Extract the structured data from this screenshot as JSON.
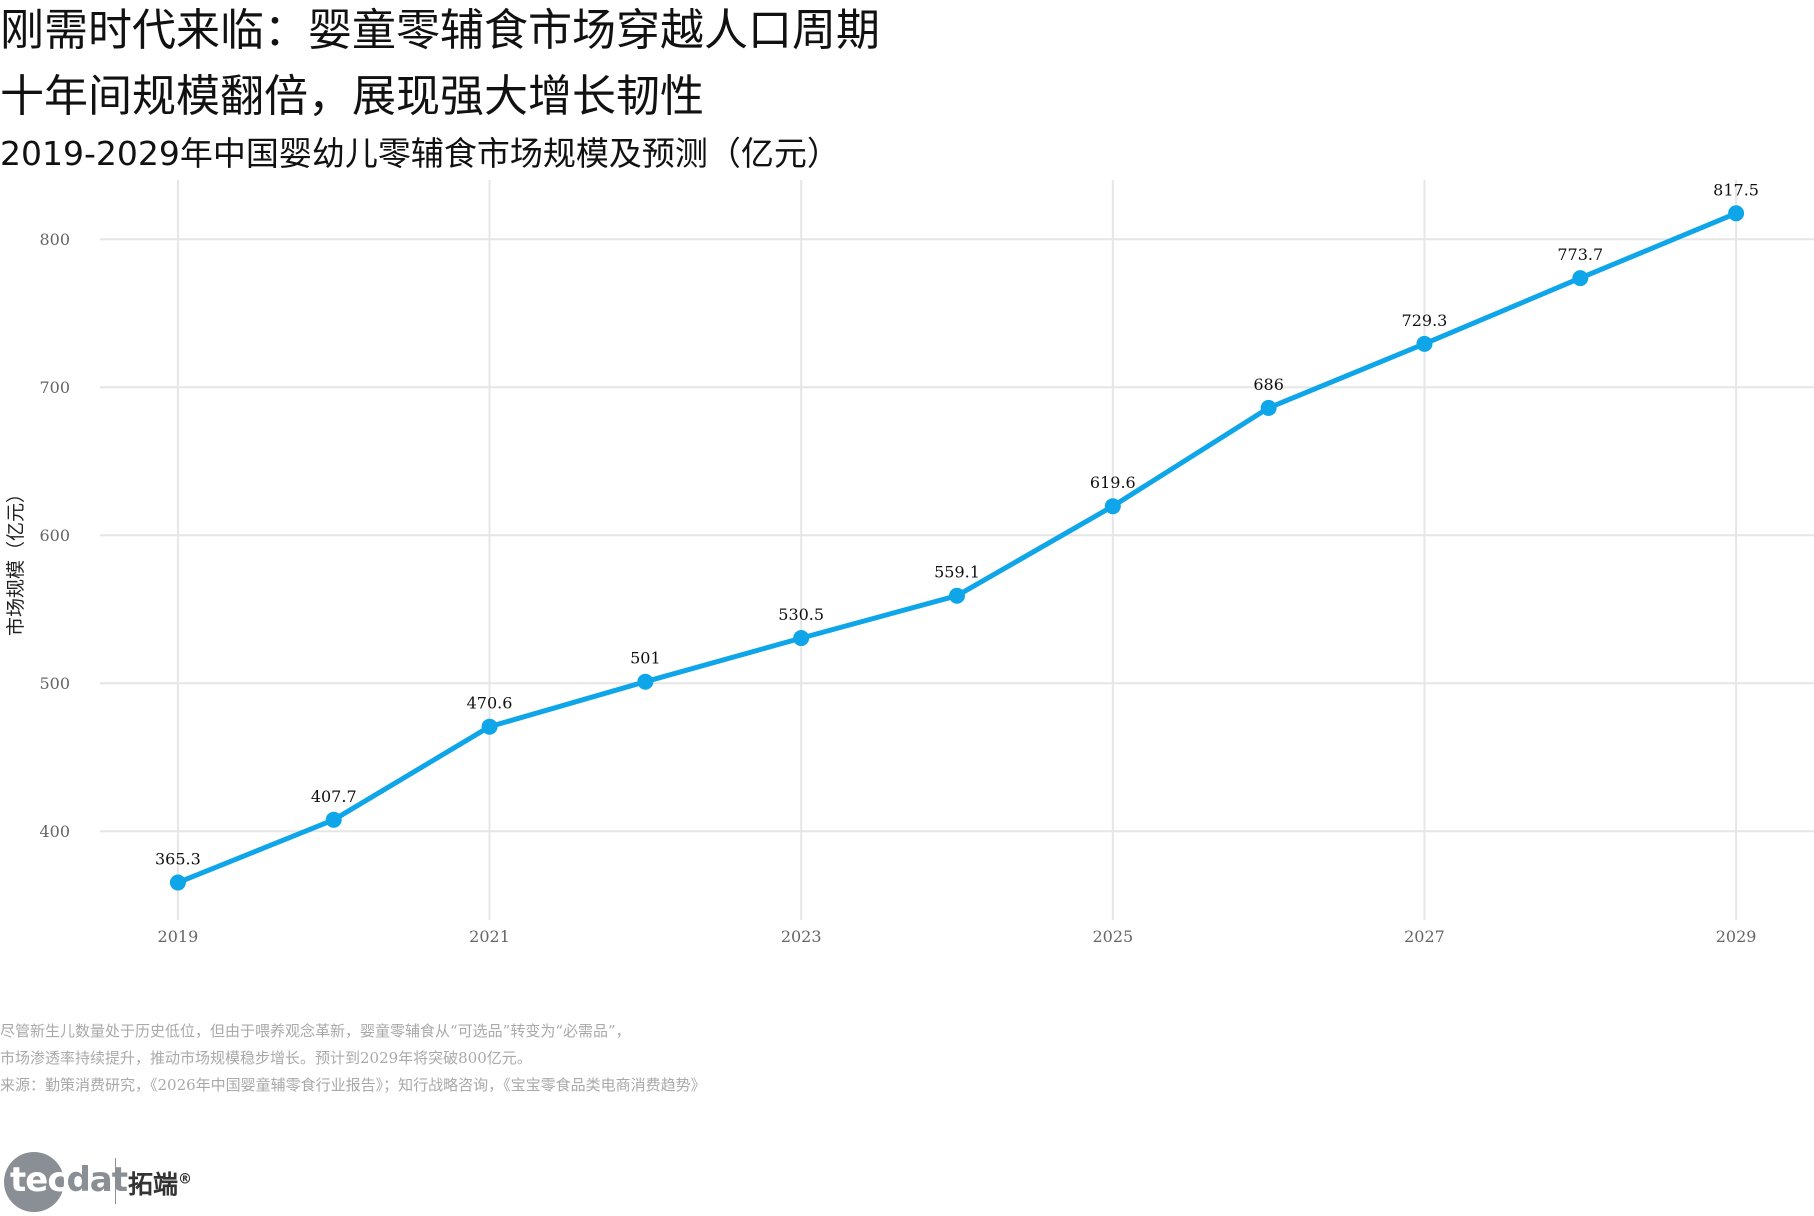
{
  "title_line1": "刚需时代来临：婴童零辅食市场穿越人口周期",
  "title_line2": "十年间规模翻倍，展现强大增长韧性",
  "subtitle": "2019-2029年中国婴幼儿零辅食市场规模及预测（亿元）",
  "chart_data": {
    "type": "line",
    "x": [
      2019,
      2020,
      2021,
      2022,
      2023,
      2024,
      2025,
      2026,
      2027,
      2028,
      2029
    ],
    "values": [
      365.3,
      407.7,
      470.6,
      501,
      530.5,
      559.1,
      619.6,
      686,
      729.3,
      773.7,
      817.5
    ],
    "value_labels": [
      "365.3",
      "407.7",
      "470.6",
      "501",
      "530.5",
      "559.1",
      "619.6",
      "686",
      "729.3",
      "773.7",
      "817.5"
    ],
    "x_ticks": [
      2019,
      2021,
      2023,
      2025,
      2027,
      2029
    ],
    "x_tick_labels": [
      "2019",
      "2021",
      "2023",
      "2025",
      "2027",
      "2029"
    ],
    "y_ticks": [
      400,
      500,
      600,
      700,
      800
    ],
    "y_tick_labels": [
      "400",
      "500",
      "600",
      "700",
      "800"
    ],
    "ylabel": "市场规模（亿元）",
    "xlabel": "",
    "xlim": [
      2018.5,
      2029.5
    ],
    "ylim": [
      340,
      840
    ],
    "grid": true,
    "line_color": "#0ea5e9",
    "grid_color": "#e6e6e6"
  },
  "notes": [
    "尽管新生儿数量处于历史低位，但由于喂养观念革新，婴童零辅食从“可选品”转变为“必需品”，",
    "市场渗透率持续提升，推动市场规模稳步增长。预计到2029年将突破800亿元。",
    "来源：勤策消费研究，《2026年中国婴童辅零食行业报告》；知行战略咨询，《宝宝零食品类电商消费趋势》"
  ],
  "logo": {
    "text_part1": "tec",
    "text_part2": "dat",
    "cn": "拓端",
    "reg": "®"
  }
}
